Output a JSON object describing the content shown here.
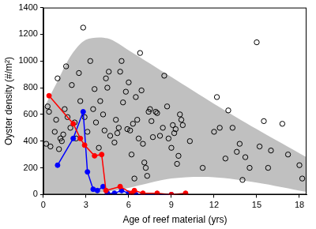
{
  "chart_data": {
    "type": "scatter",
    "x_label": "Age of reef material (yrs)",
    "y_label": "Oyster density (#/m²)",
    "xlim": [
      0,
      18.5
    ],
    "xticks": [
      0,
      3,
      6,
      9,
      12,
      15,
      18
    ],
    "ylim": [
      0,
      1400
    ],
    "yticks": [
      0,
      200,
      400,
      600,
      800,
      1000,
      1200,
      1400
    ],
    "grid": false,
    "series": [
      {
        "type": "band",
        "color": "#c0c0c0",
        "x": [
          0,
          1,
          2,
          3,
          4.5,
          6,
          9,
          12,
          15,
          18.5
        ],
        "lower": [
          0,
          0,
          0,
          0,
          20,
          50,
          120,
          130,
          90,
          20
        ],
        "upper": [
          640,
          850,
          1050,
          1160,
          1170,
          1080,
          880,
          680,
          490,
          280
        ]
      },
      {
        "type": "scatter",
        "color": "#000000",
        "marker": "open_circle",
        "x": [
          0.2,
          0.3,
          0.4,
          0.5,
          0.8,
          0.9,
          1,
          1.1,
          1.2,
          1.3,
          1.4,
          1.5,
          1.6,
          1.7,
          1.9,
          2,
          2.2,
          2.3,
          2.5,
          2.6,
          2.8,
          2.9,
          3.1,
          3.3,
          3.5,
          3.6,
          3.7,
          3.9,
          4,
          4.2,
          4.3,
          4.4,
          4.5,
          4.6,
          4.7,
          5,
          5.1,
          5.2,
          5.3,
          5.4,
          5.5,
          5.6,
          5.8,
          5.9,
          6,
          6.1,
          6.2,
          6.3,
          6.4,
          6.5,
          6.6,
          6.7,
          6.8,
          6.9,
          7,
          7.1,
          7.2,
          7.3,
          7.4,
          7.5,
          7.6,
          7.7,
          7.9,
          8,
          8.2,
          8.4,
          8.5,
          8.7,
          8.8,
          9,
          9.1,
          9.2,
          9.3,
          9.4,
          9.5,
          9.6,
          9.7,
          9.8,
          10.3,
          11.2,
          12,
          12.2,
          12.4,
          12.8,
          13,
          13.3,
          13.6,
          13.8,
          14,
          14.2,
          14.5,
          15,
          15.2,
          15.5,
          15.8,
          16,
          16.8,
          17.2,
          18,
          18.2
        ],
        "values": [
          380,
          660,
          620,
          360,
          470,
          560,
          870,
          340,
          420,
          400,
          450,
          640,
          960,
          580,
          500,
          820,
          540,
          420,
          910,
          700,
          1250,
          580,
          470,
          1000,
          640,
          790,
          540,
          350,
          700,
          600,
          480,
          870,
          800,
          920,
          440,
          390,
          560,
          460,
          500,
          920,
          1000,
          690,
          770,
          490,
          840,
          480,
          300,
          530,
          120,
          730,
          560,
          420,
          1060,
          780,
          380,
          240,
          200,
          140,
          620,
          640,
          550,
          430,
          620,
          610,
          440,
          500,
          890,
          660,
          420,
          350,
          520,
          460,
          490,
          230,
          290,
          600,
          560,
          520,
          400,
          200,
          470,
          730,
          500,
          270,
          630,
          500,
          320,
          380,
          110,
          280,
          200,
          1140,
          360,
          550,
          200,
          330,
          530,
          300,
          220,
          120
        ]
      },
      {
        "type": "line",
        "color": "#ff0000",
        "marker": "circle",
        "x": [
          0.4,
          2.1,
          2.6,
          2.9,
          3.6,
          4.1,
          4.4,
          5.4,
          6.2,
          6.4,
          7,
          8,
          9,
          10
        ],
        "values": [
          740,
          530,
          420,
          370,
          290,
          300,
          30,
          60,
          10,
          30,
          10,
          10,
          0,
          10
        ]
      },
      {
        "type": "line",
        "color": "#0000ff",
        "marker": "circle",
        "x": [
          1,
          2.1,
          2.8,
          3.1,
          3.5,
          3.8,
          4.2,
          4.5,
          5,
          5.5,
          6,
          6.5,
          9
        ],
        "values": [
          220,
          420,
          620,
          170,
          40,
          30,
          60,
          10,
          10,
          30,
          10,
          0,
          0
        ]
      }
    ]
  }
}
